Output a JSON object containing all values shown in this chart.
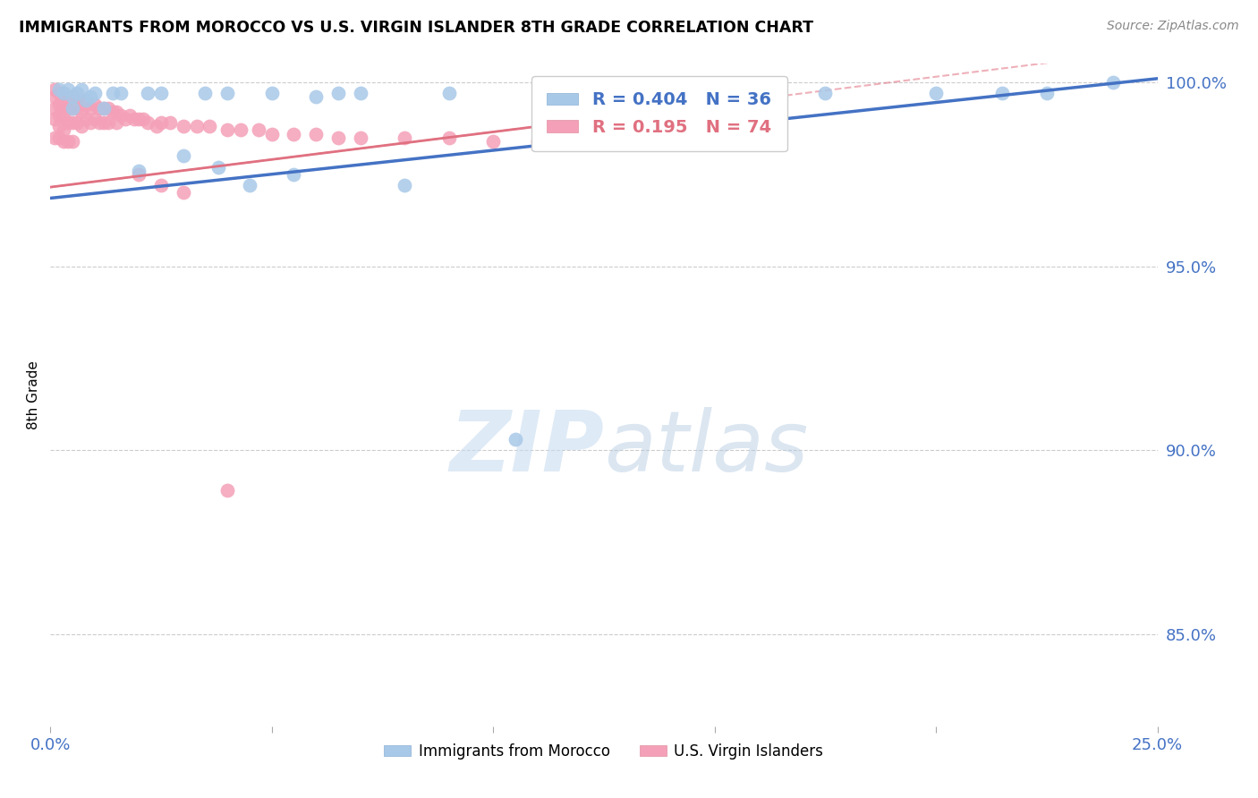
{
  "title": "IMMIGRANTS FROM MOROCCO VS U.S. VIRGIN ISLANDER 8TH GRADE CORRELATION CHART",
  "source": "Source: ZipAtlas.com",
  "ylabel": "8th Grade",
  "legend_labels": [
    "Immigrants from Morocco",
    "U.S. Virgin Islanders"
  ],
  "r_blue": 0.404,
  "n_blue": 36,
  "r_pink": 0.195,
  "n_pink": 74,
  "color_blue": "#a8c8e8",
  "color_pink": "#f4a0b8",
  "line_color_blue": "#4472c4",
  "line_color_pink": "#e07080",
  "xlim": [
    0.0,
    0.25
  ],
  "ylim": [
    0.825,
    1.005
  ],
  "yticks": [
    0.85,
    0.9,
    0.95,
    1.0
  ],
  "ytick_labels": [
    "85.0%",
    "90.0%",
    "95.0%",
    "100.0%"
  ],
  "xticks": [
    0.0,
    0.05,
    0.1,
    0.15,
    0.2,
    0.25
  ],
  "xtick_labels": [
    "0.0%",
    "",
    "",
    "",
    "",
    "25.0%"
  ],
  "watermark_zip": "ZIP",
  "watermark_atlas": "atlas",
  "blue_x": [
    0.002,
    0.003,
    0.004,
    0.005,
    0.005,
    0.006,
    0.007,
    0.008,
    0.009,
    0.01,
    0.012,
    0.014,
    0.016,
    0.02,
    0.022,
    0.025,
    0.03,
    0.035,
    0.038,
    0.04,
    0.045,
    0.05,
    0.055,
    0.06,
    0.065,
    0.07,
    0.08,
    0.09,
    0.105,
    0.12,
    0.15,
    0.175,
    0.2,
    0.215,
    0.225,
    0.24
  ],
  "blue_y": [
    0.998,
    0.997,
    0.998,
    0.996,
    0.993,
    0.997,
    0.998,
    0.995,
    0.996,
    0.997,
    0.993,
    0.997,
    0.997,
    0.976,
    0.997,
    0.997,
    0.98,
    0.997,
    0.977,
    0.997,
    0.972,
    0.997,
    0.975,
    0.996,
    0.997,
    0.997,
    0.972,
    0.997,
    0.903,
    0.997,
    0.997,
    0.997,
    0.997,
    0.997,
    0.997,
    1.0
  ],
  "pink_x": [
    0.001,
    0.001,
    0.001,
    0.001,
    0.002,
    0.002,
    0.002,
    0.002,
    0.003,
    0.003,
    0.003,
    0.003,
    0.004,
    0.004,
    0.004,
    0.005,
    0.005,
    0.005,
    0.006,
    0.006,
    0.006,
    0.007,
    0.007,
    0.007,
    0.008,
    0.008,
    0.009,
    0.009,
    0.01,
    0.01,
    0.011,
    0.011,
    0.012,
    0.012,
    0.013,
    0.013,
    0.014,
    0.015,
    0.015,
    0.016,
    0.017,
    0.018,
    0.019,
    0.02,
    0.021,
    0.022,
    0.024,
    0.025,
    0.027,
    0.03,
    0.033,
    0.036,
    0.04,
    0.043,
    0.047,
    0.05,
    0.055,
    0.06,
    0.065,
    0.07,
    0.08,
    0.09,
    0.1,
    0.11,
    0.12,
    0.001,
    0.002,
    0.003,
    0.004,
    0.005,
    0.02,
    0.025,
    0.03,
    0.04
  ],
  "pink_y": [
    0.998,
    0.996,
    0.993,
    0.99,
    0.997,
    0.994,
    0.991,
    0.988,
    0.997,
    0.994,
    0.991,
    0.987,
    0.996,
    0.993,
    0.989,
    0.996,
    0.993,
    0.989,
    0.996,
    0.993,
    0.989,
    0.995,
    0.992,
    0.988,
    0.994,
    0.99,
    0.993,
    0.989,
    0.994,
    0.99,
    0.993,
    0.989,
    0.993,
    0.989,
    0.993,
    0.989,
    0.992,
    0.992,
    0.989,
    0.991,
    0.99,
    0.991,
    0.99,
    0.99,
    0.99,
    0.989,
    0.988,
    0.989,
    0.989,
    0.988,
    0.988,
    0.988,
    0.987,
    0.987,
    0.987,
    0.986,
    0.986,
    0.986,
    0.985,
    0.985,
    0.985,
    0.985,
    0.984,
    0.984,
    0.984,
    0.985,
    0.985,
    0.984,
    0.984,
    0.984,
    0.975,
    0.972,
    0.97,
    0.889
  ]
}
